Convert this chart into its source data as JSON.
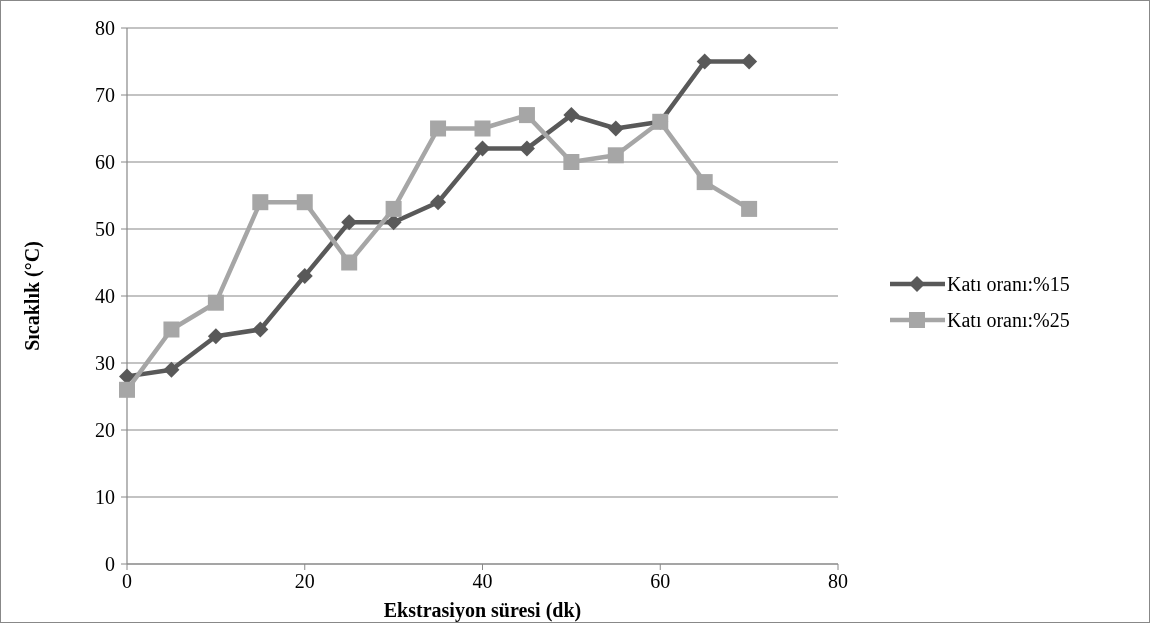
{
  "chart_data": {
    "type": "line",
    "xlabel": "Ekstrasiyon süresi (dk)",
    "ylabel": "Sıcaklık (°C)",
    "x": [
      0,
      5,
      10,
      15,
      20,
      25,
      30,
      35,
      40,
      45,
      50,
      55,
      60,
      65,
      70
    ],
    "series": [
      {
        "name": "Katı oranı:%15",
        "color": "#595959",
        "marker": "diamond",
        "values": [
          28,
          29,
          34,
          35,
          43,
          51,
          51,
          54,
          62,
          62,
          67,
          65,
          66,
          75,
          75
        ]
      },
      {
        "name": "Katı oranı:%25",
        "color": "#a6a6a6",
        "marker": "square",
        "values": [
          26,
          35,
          39,
          54,
          54,
          45,
          53,
          65,
          65,
          67,
          60,
          61,
          66,
          57,
          53
        ]
      }
    ],
    "xlim": [
      0,
      80
    ],
    "xticks": [
      0,
      20,
      40,
      60,
      80
    ],
    "ylim": [
      0,
      80
    ],
    "yticks": [
      0,
      10,
      20,
      30,
      40,
      50,
      60,
      70,
      80
    ],
    "grid": "y",
    "legend": "right",
    "line_style": "solid"
  }
}
